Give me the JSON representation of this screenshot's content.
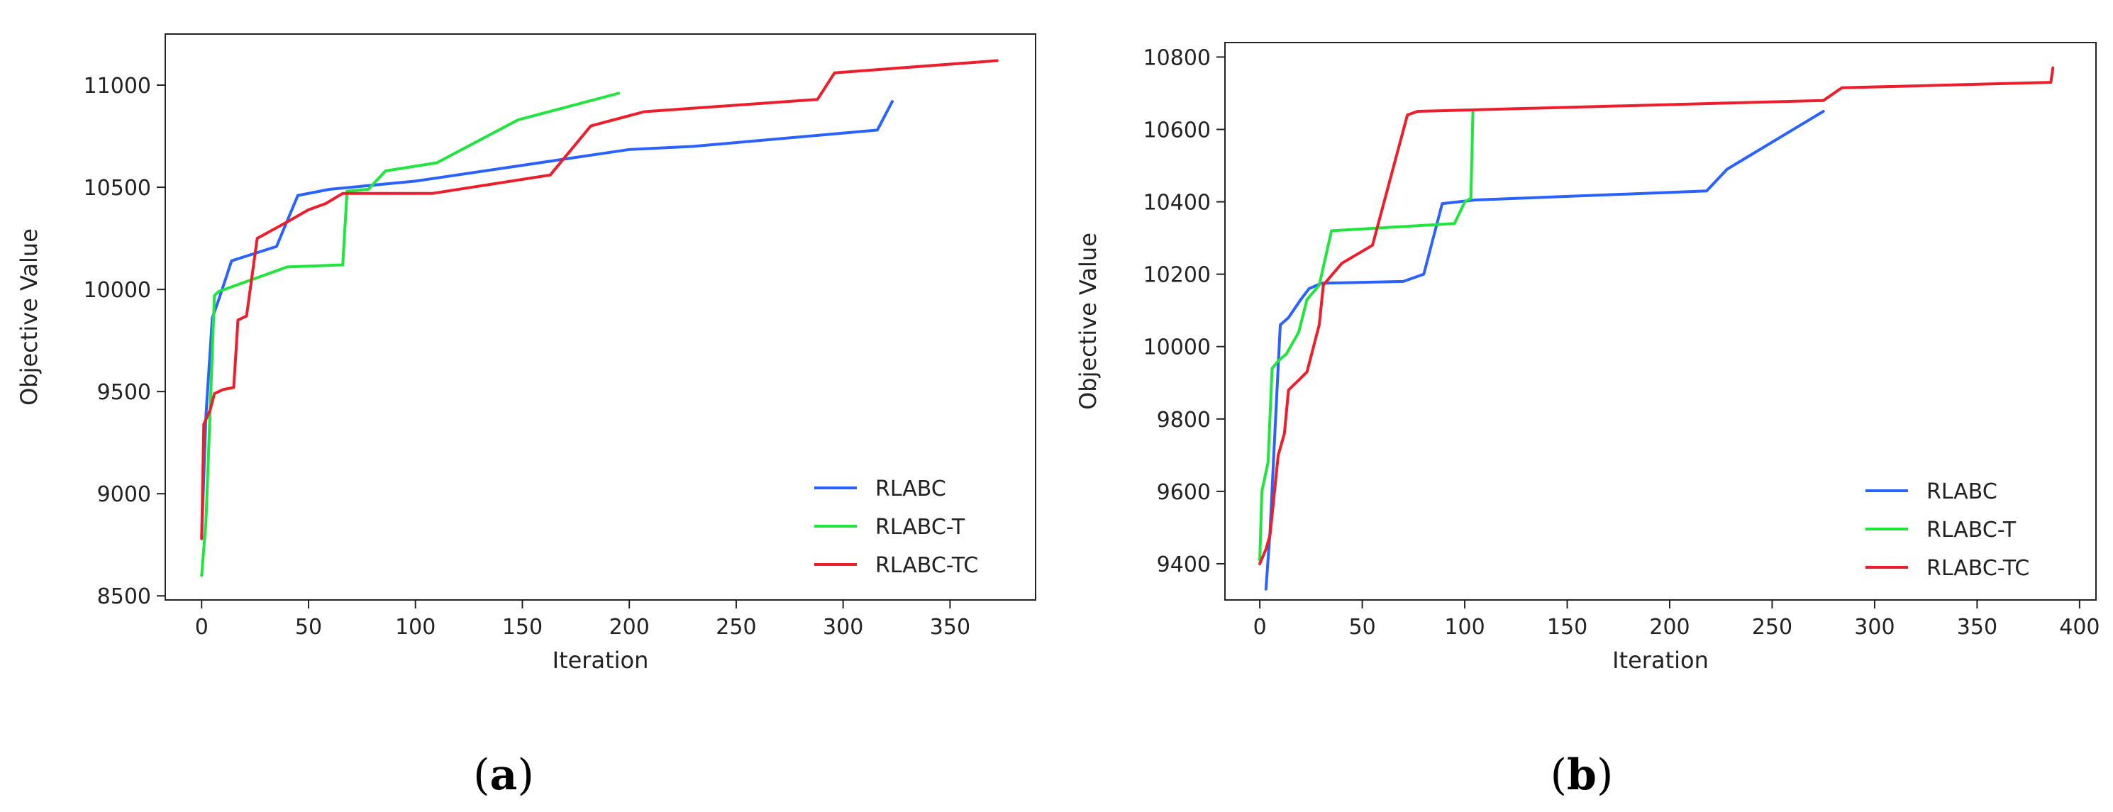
{
  "figure": {
    "captions": [
      "(a)",
      "(b)"
    ],
    "caption_letters": [
      "a",
      "b"
    ]
  },
  "chart_data": [
    {
      "type": "line",
      "title": "",
      "xlabel": "Iteration",
      "ylabel": "Objective Value",
      "xlim": [
        -17,
        390
      ],
      "ylim": [
        8480,
        11250
      ],
      "xticks": [
        0,
        50,
        100,
        150,
        200,
        250,
        300,
        350
      ],
      "yticks": [
        8500,
        9000,
        9500,
        10000,
        10500,
        11000
      ],
      "grid": false,
      "legend_position": "lower-right",
      "series": [
        {
          "name": "RLABC",
          "color": "#2962ff",
          "x": [
            0,
            2,
            5,
            8,
            14,
            20,
            35,
            45,
            60,
            100,
            200,
            230,
            316,
            323
          ],
          "y": [
            8790,
            9380,
            9860,
            9950,
            10140,
            10160,
            10210,
            10460,
            10490,
            10530,
            10685,
            10700,
            10780,
            10920
          ]
        },
        {
          "name": "RLABC-T",
          "color": "#1ee63c",
          "x": [
            0,
            2,
            4,
            6,
            8,
            40,
            66,
            68,
            78,
            86,
            110,
            148,
            195
          ],
          "y": [
            8600,
            8860,
            9410,
            9970,
            9990,
            10110,
            10120,
            10480,
            10490,
            10580,
            10620,
            10830,
            10960
          ]
        },
        {
          "name": "RLABC-TC",
          "color": "#ef1d2a",
          "x": [
            0,
            1,
            4,
            6,
            10,
            15,
            17,
            21,
            26,
            40,
            50,
            58,
            66,
            108,
            163,
            182,
            207,
            288,
            296,
            372
          ],
          "y": [
            8780,
            9340,
            9410,
            9490,
            9510,
            9520,
            9850,
            9870,
            10250,
            10330,
            10390,
            10420,
            10470,
            10470,
            10560,
            10800,
            10870,
            10930,
            11060,
            11120
          ]
        }
      ]
    },
    {
      "type": "line",
      "title": "",
      "xlabel": "Iteration",
      "ylabel": "Objective Value",
      "xlim": [
        -17,
        408
      ],
      "ylim": [
        9300,
        10840
      ],
      "xticks": [
        0,
        50,
        100,
        150,
        200,
        250,
        300,
        350,
        400
      ],
      "yticks": [
        9400,
        9600,
        9800,
        10000,
        10200,
        10400,
        10600,
        10800
      ],
      "grid": false,
      "legend_position": "lower-right",
      "series": [
        {
          "name": "RLABC",
          "color": "#2962ff",
          "x": [
            3,
            5,
            7,
            10,
            14,
            20,
            24,
            30,
            70,
            80,
            89,
            105,
            218,
            228,
            275
          ],
          "y": [
            9330,
            9490,
            9720,
            10060,
            10080,
            10130,
            10160,
            10175,
            10180,
            10200,
            10395,
            10405,
            10430,
            10490,
            10650
          ]
        },
        {
          "name": "RLABC-T",
          "color": "#1ee63c",
          "x": [
            0,
            1,
            4,
            6,
            9,
            13,
            19,
            23,
            29,
            35,
            95,
            100,
            103,
            104
          ],
          "y": [
            9410,
            9600,
            9680,
            9940,
            9960,
            9980,
            10040,
            10130,
            10170,
            10320,
            10340,
            10400,
            10410,
            10650
          ]
        },
        {
          "name": "RLABC-TC",
          "color": "#ef1d2a",
          "x": [
            0,
            3,
            5,
            9,
            12,
            14,
            23,
            29,
            31,
            40,
            55,
            72,
            77,
            275,
            284,
            386,
            387
          ],
          "y": [
            9400,
            9440,
            9480,
            9700,
            9760,
            9880,
            9930,
            10060,
            10170,
            10230,
            10280,
            10640,
            10650,
            10680,
            10715,
            10730,
            10770
          ]
        }
      ]
    }
  ]
}
